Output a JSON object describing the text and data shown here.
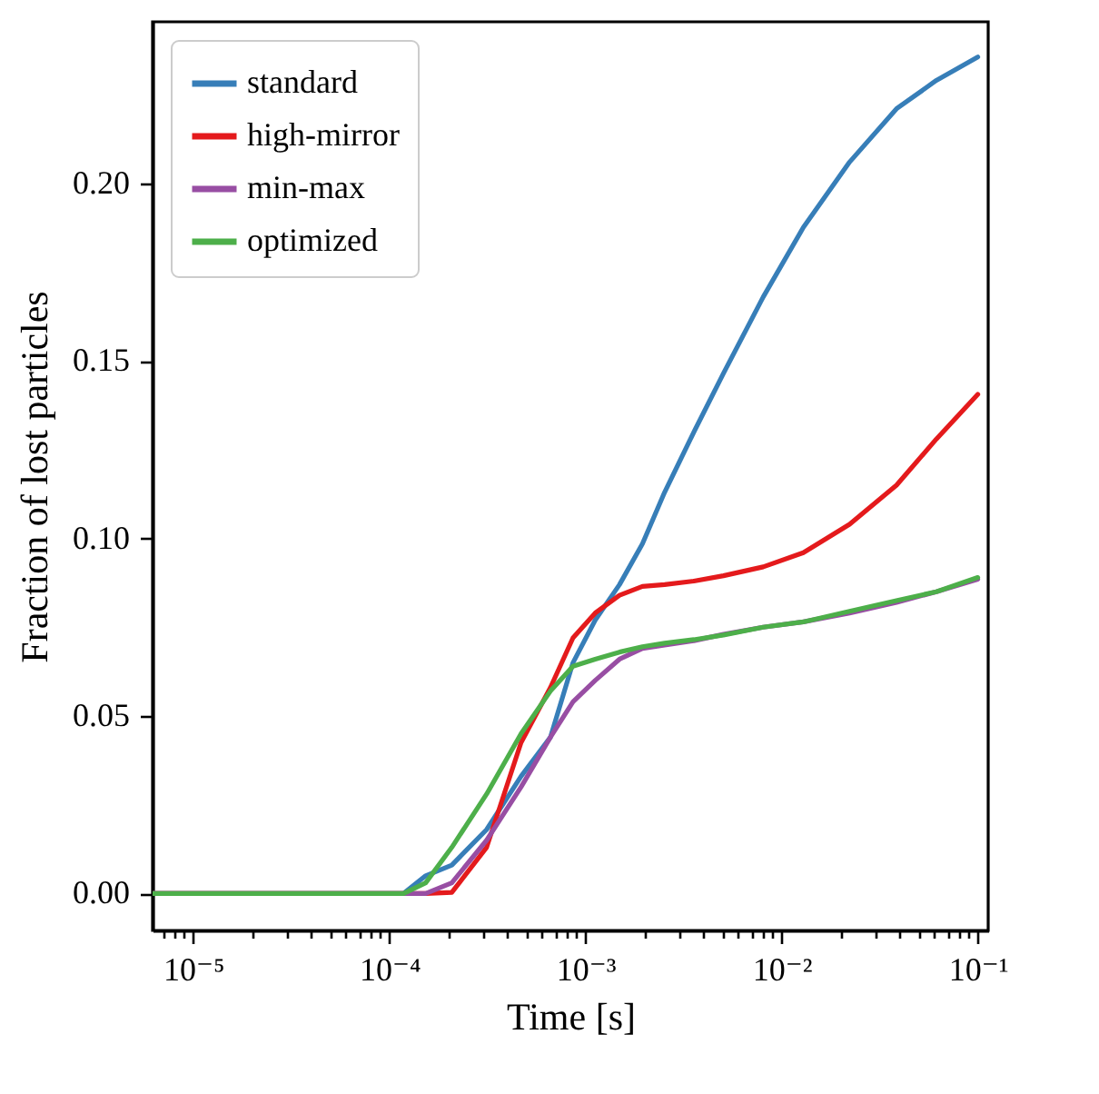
{
  "chart_data": {
    "type": "line",
    "xlabel": "Time [s]",
    "ylabel": "Fraction of lost particles",
    "log": "x",
    "legend": "top left",
    "line_style": "solid",
    "marker": "none",
    "x": [
      6.2e-06,
      0.000118,
      0.000153,
      0.000208,
      0.000313,
      0.000469,
      0.000662,
      0.000863,
      0.00112,
      0.00149,
      0.00195,
      0.00253,
      0.00357,
      0.00505,
      0.00805,
      0.0129,
      0.0222,
      0.0385,
      0.0615,
      0.1
    ],
    "series": [
      {
        "name": "standard",
        "color": "#377eb8",
        "values": [
          0,
          0,
          0.005,
          0.008,
          0.018,
          0.033,
          0.044,
          0.065,
          0.077,
          0.087,
          0.0985,
          0.113,
          0.13,
          0.1465,
          0.168,
          0.1876,
          0.206,
          0.221,
          0.229,
          0.2356
        ]
      },
      {
        "name": "high-mirror",
        "color": "#e41a1c",
        "values": [
          0,
          0,
          0,
          0.0003,
          0.013,
          0.0425,
          0.058,
          0.072,
          0.079,
          0.084,
          0.0865,
          0.087,
          0.088,
          0.0895,
          0.092,
          0.096,
          0.104,
          0.115,
          0.128,
          0.1406
        ]
      },
      {
        "name": "min-max",
        "color": "#984ea3",
        "values": [
          0,
          0,
          0,
          0.003,
          0.015,
          0.03,
          0.044,
          0.054,
          0.06,
          0.066,
          0.069,
          0.07,
          0.0712,
          0.073,
          0.075,
          0.0765,
          0.079,
          0.082,
          0.085,
          0.0885
        ]
      },
      {
        "name": "optimized",
        "color": "#4daf4a",
        "values": [
          0,
          0,
          0.003,
          0.013,
          0.028,
          0.045,
          0.057,
          0.064,
          0.066,
          0.068,
          0.0695,
          0.0705,
          0.0715,
          0.0728,
          0.075,
          0.0765,
          0.0795,
          0.0825,
          0.085,
          0.089
        ]
      }
    ],
    "xlim": [
      6.2e-06,
      0.113
    ],
    "ylim": [
      -0.0104,
      0.2455
    ],
    "xticks": [
      {
        "value": 7e-06,
        "label": null
      },
      {
        "value": 8e-06,
        "label": null
      },
      {
        "value": 9e-06,
        "label": null
      },
      {
        "value": 1e-05,
        "label": "10⁻⁵"
      },
      {
        "value": 2e-05,
        "label": null
      },
      {
        "value": 3e-05,
        "label": null
      },
      {
        "value": 4e-05,
        "label": null
      },
      {
        "value": 5e-05,
        "label": null
      },
      {
        "value": 6e-05,
        "label": null
      },
      {
        "value": 7e-05,
        "label": null
      },
      {
        "value": 8e-05,
        "label": null
      },
      {
        "value": 9e-05,
        "label": null
      },
      {
        "value": 0.0001,
        "label": "10⁻⁴"
      },
      {
        "value": 0.0002,
        "label": null
      },
      {
        "value": 0.0003,
        "label": null
      },
      {
        "value": 0.0004,
        "label": null
      },
      {
        "value": 0.0005,
        "label": null
      },
      {
        "value": 0.0006,
        "label": null
      },
      {
        "value": 0.0007,
        "label": null
      },
      {
        "value": 0.0008,
        "label": null
      },
      {
        "value": 0.0009,
        "label": null
      },
      {
        "value": 0.001,
        "label": "10⁻³"
      },
      {
        "value": 0.002,
        "label": null
      },
      {
        "value": 0.003,
        "label": null
      },
      {
        "value": 0.004,
        "label": null
      },
      {
        "value": 0.005,
        "label": null
      },
      {
        "value": 0.006,
        "label": null
      },
      {
        "value": 0.007,
        "label": null
      },
      {
        "value": 0.008,
        "label": null
      },
      {
        "value": 0.009,
        "label": null
      },
      {
        "value": 0.01,
        "label": "10⁻²"
      },
      {
        "value": 0.02,
        "label": null
      },
      {
        "value": 0.03,
        "label": null
      },
      {
        "value": 0.04,
        "label": null
      },
      {
        "value": 0.05,
        "label": null
      },
      {
        "value": 0.06,
        "label": null
      },
      {
        "value": 0.07,
        "label": null
      },
      {
        "value": 0.08,
        "label": null
      },
      {
        "value": 0.09,
        "label": null
      },
      {
        "value": 0.1,
        "label": "10⁻¹"
      }
    ],
    "yticks": [
      {
        "value": 0,
        "label": "0.00"
      },
      {
        "value": 0.05,
        "label": "0.05"
      },
      {
        "value": 0.1,
        "label": "0.10"
      },
      {
        "value": 0.15,
        "label": "0.15"
      },
      {
        "value": 0.2,
        "label": "0.20"
      }
    ]
  }
}
